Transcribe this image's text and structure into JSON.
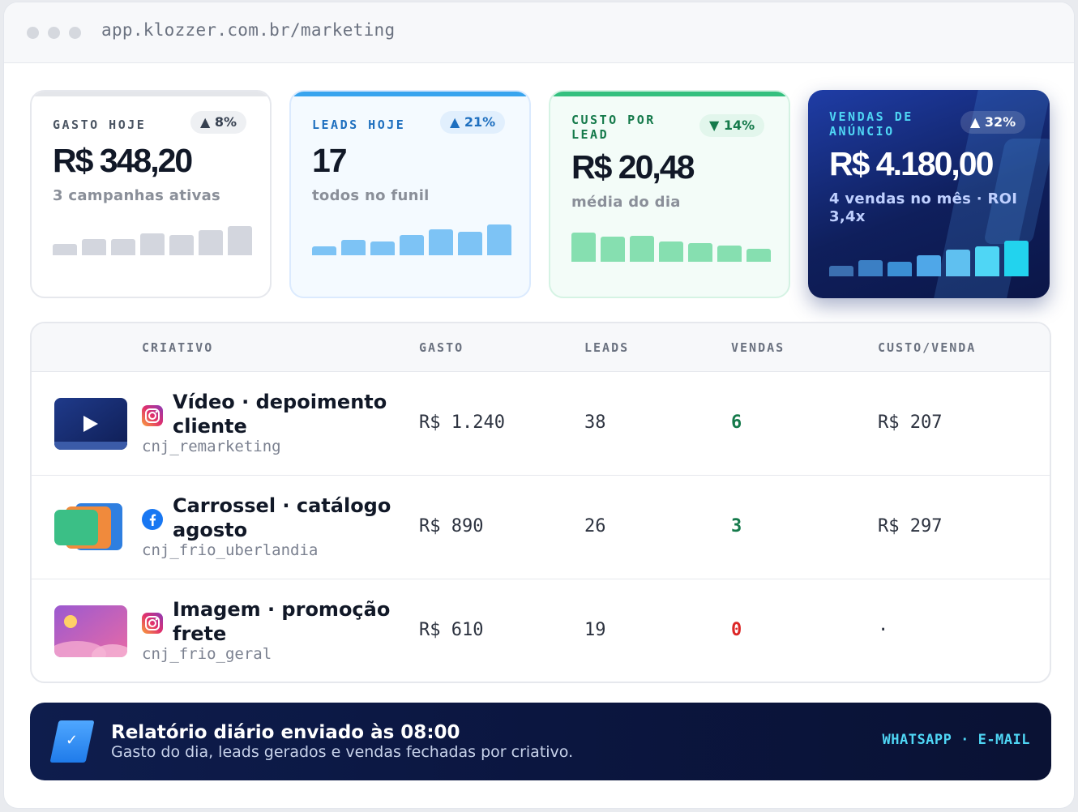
{
  "browser": {
    "url": "app.klozzer.com.br/marketing"
  },
  "colors": {
    "positive": "#157a4b",
    "negative": "#dc2626",
    "accent": "#38a4ee",
    "highlight": "#4fd6f5"
  },
  "kpis": [
    {
      "label": "GASTO HOJE",
      "trend": "▲ 8%",
      "value": "R$ 348,20",
      "sub": "3 campanhas ativas",
      "spark": [
        0.4,
        0.55,
        0.55,
        0.75,
        0.7,
        0.85,
        1.0
      ]
    },
    {
      "label": "LEADS HOJE",
      "trend": "▲ 21%",
      "value": "17",
      "sub": "todos no funil",
      "spark": [
        0.3,
        0.5,
        0.45,
        0.65,
        0.85,
        0.75,
        1.0
      ]
    },
    {
      "label": "CUSTO POR LEAD",
      "trend": "▼ 14%",
      "value": "R$ 20,48",
      "sub": "média do dia",
      "spark": [
        1.0,
        0.85,
        0.9,
        0.7,
        0.65,
        0.55,
        0.45
      ]
    },
    {
      "label": "VENDAS DE ANÚNCIO",
      "trend": "▲ 32%",
      "value": "R$ 4.180,00",
      "sub": "4 vendas no mês · ROI 3,4x",
      "spark": [
        0.3,
        0.45,
        0.4,
        0.6,
        0.75,
        0.85,
        1.0
      ]
    }
  ],
  "table": {
    "headers": {
      "creative": "CRIATIVO",
      "spend": "GASTO",
      "leads": "LEADS",
      "sales": "VENDAS",
      "cost_per_sale": "CUSTO/VENDA"
    },
    "rows": [
      {
        "platform_icon": "instagram-icon",
        "title": "Vídeo · depoimento cliente",
        "account": "cnj_remarketing",
        "spend": "R$ 1.240",
        "leads": "38",
        "sales": "6",
        "cost_per_sale": "R$ 207"
      },
      {
        "platform_icon": "facebook-icon",
        "title": "Carrossel · catálogo agosto",
        "account": "cnj_frio_uberlandia",
        "spend": "R$ 890",
        "leads": "26",
        "sales": "3",
        "cost_per_sale": "R$ 297"
      },
      {
        "platform_icon": "instagram-icon",
        "title": "Imagem · promoção frete",
        "account": "cnj_frio_geral",
        "spend": "R$ 610",
        "leads": "19",
        "sales": "0",
        "cost_per_sale": "·"
      }
    ]
  },
  "banner": {
    "title": "Relatório diário enviado às 08:00",
    "subtitle": "Gasto do dia, leads gerados e vendas fechadas por criativo.",
    "channels": "WHATSAPP · E-MAIL"
  }
}
